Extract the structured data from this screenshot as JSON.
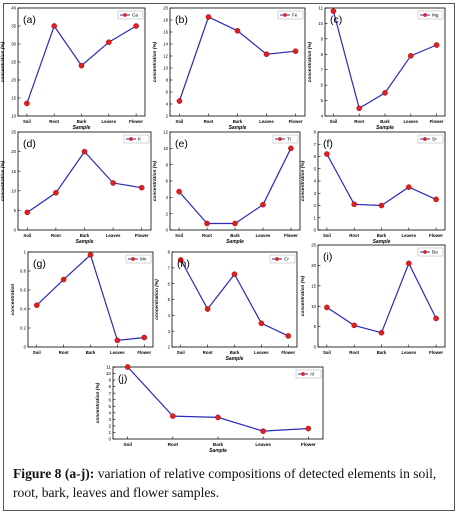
{
  "caption": {
    "label": "Figure 8 (a-j):",
    "text": " variation of relative compositions of detected elements in soil, root, bark, leaves and flower samples."
  },
  "colors": {
    "line": "#2b2bb8",
    "marker": "#e02020",
    "axis": "#000000"
  },
  "chart_data": [
    {
      "panel_label": "(a)",
      "type": "line",
      "series": [
        {
          "name": "Ca",
          "values": [
            13.5,
            35,
            24,
            30.5,
            35
          ]
        }
      ],
      "categories": [
        "Soil",
        "Root",
        "Bark",
        "Leaves",
        "Flower"
      ],
      "xlabel": "Sample",
      "ylabel": "concentration (%)",
      "ylim": [
        10,
        40
      ],
      "yticks": [
        10,
        15,
        20,
        25,
        30,
        35,
        40
      ],
      "legend": "top-right",
      "grid": false
    },
    {
      "panel_label": "(b)",
      "type": "line",
      "series": [
        {
          "name": "Fe",
          "values": [
            4.5,
            18.5,
            16.2,
            12.3,
            12.8
          ]
        }
      ],
      "categories": [
        "Soil",
        "Root",
        "Bark",
        "Leaves",
        "Flower"
      ],
      "xlabel": "Sample",
      "ylabel": "concentration (%)",
      "ylim": [
        2,
        20
      ],
      "yticks": [
        2,
        4,
        6,
        8,
        10,
        12,
        14,
        16,
        18,
        20
      ],
      "legend": "top-right",
      "grid": false
    },
    {
      "panel_label": "(c)",
      "type": "line",
      "series": [
        {
          "name": "Mg",
          "values": [
            10.8,
            4.5,
            5.5,
            7.9,
            8.6
          ]
        }
      ],
      "categories": [
        "Soil",
        "Root",
        "Bark",
        "Leaves",
        "Flower"
      ],
      "xlabel": "Sample",
      "ylabel": "concentration (%)",
      "ylim": [
        4,
        11
      ],
      "yticks": [
        4,
        5,
        6,
        7,
        8,
        9,
        10,
        11
      ],
      "legend": "top-right",
      "grid": false
    },
    {
      "panel_label": "(d)",
      "type": "line",
      "series": [
        {
          "name": "K",
          "values": [
            4.5,
            9.5,
            20,
            12,
            10.8
          ]
        }
      ],
      "categories": [
        "Soil",
        "Root",
        "Bark",
        "Leaves",
        "Flower"
      ],
      "xlabel": "Sample",
      "ylabel": "concentration (%)",
      "ylim": [
        0,
        25
      ],
      "yticks": [
        0,
        5,
        10,
        15,
        20,
        25
      ],
      "legend": "top-right",
      "grid": false
    },
    {
      "panel_label": "(e)",
      "type": "line",
      "series": [
        {
          "name": "Ti",
          "values": [
            4.7,
            0.8,
            0.8,
            3.1,
            10
          ]
        }
      ],
      "categories": [
        "Soil",
        "Root",
        "Bark",
        "Leaves",
        "Flower"
      ],
      "xlabel": "Sample",
      "ylabel": "concentration (%)",
      "ylim": [
        0,
        12
      ],
      "yticks": [
        0,
        2,
        4,
        6,
        8,
        10,
        12
      ],
      "legend": "top-right",
      "grid": false
    },
    {
      "panel_label": "(f)",
      "type": "line",
      "series": [
        {
          "name": "Sr",
          "values": [
            6.2,
            2.1,
            2.0,
            3.5,
            2.5
          ]
        }
      ],
      "categories": [
        "Soil",
        "Root",
        "Bark",
        "Leaves",
        "Flower"
      ],
      "xlabel": "Sample",
      "ylabel": "concentration (%)",
      "ylim": [
        0,
        8
      ],
      "yticks": [
        0,
        1,
        2,
        3,
        4,
        5,
        6,
        7,
        8
      ],
      "legend": "top-right",
      "grid": false
    },
    {
      "panel_label": "(g)",
      "type": "line",
      "series": [
        {
          "name": "Mn",
          "values": [
            0.44,
            0.71,
            0.97,
            0.07,
            0.1
          ]
        }
      ],
      "categories": [
        "Soil",
        "Root",
        "Bark",
        "Leaves",
        "Flower"
      ],
      "xlabel": "",
      "ylabel": "concentration",
      "ylim": [
        0,
        1.0
      ],
      "yticks": [
        0.0,
        0.2,
        0.4,
        0.6,
        0.8,
        1.0
      ],
      "legend": "top-right",
      "grid": false
    },
    {
      "panel_label": "(h)",
      "type": "line",
      "series": [
        {
          "name": "Cr",
          "values": [
            7.5,
            4.4,
            6.6,
            3.5,
            2.7
          ]
        }
      ],
      "categories": [
        "Soil",
        "Root",
        "Bark",
        "Leaves",
        "Flower"
      ],
      "xlabel": "Sample",
      "ylabel": "concentration (%)",
      "ylim": [
        2,
        8
      ],
      "yticks": [
        2,
        3,
        4,
        5,
        6,
        7,
        8
      ],
      "legend": "top-right",
      "grid": false
    },
    {
      "panel_label": "(i)",
      "type": "line",
      "series": [
        {
          "name": "Ba",
          "values": [
            9.7,
            5.3,
            3.5,
            20.5,
            7.0
          ]
        }
      ],
      "categories": [
        "Soil",
        "Root",
        "Bark",
        "Leaves",
        "Flower"
      ],
      "xlabel": "",
      "ylabel": "concentration (%)",
      "ylim": [
        0,
        25
      ],
      "yticks": [
        0,
        5,
        10,
        15,
        20,
        25
      ],
      "legend": "top-right",
      "grid": false
    },
    {
      "panel_label": "(j)",
      "type": "line",
      "series": [
        {
          "name": "Al",
          "values": [
            11,
            3.5,
            3.3,
            1.2,
            1.6
          ]
        }
      ],
      "categories": [
        "Soil",
        "Root",
        "Bark",
        "Leaves",
        "Flower"
      ],
      "xlabel": "Sample",
      "ylabel": "concentration (%)",
      "ylim": [
        0,
        11
      ],
      "yticks": [
        0,
        1,
        2,
        3,
        4,
        5,
        6,
        7,
        8,
        9,
        10,
        11
      ],
      "legend": "top-right",
      "grid": false
    }
  ]
}
